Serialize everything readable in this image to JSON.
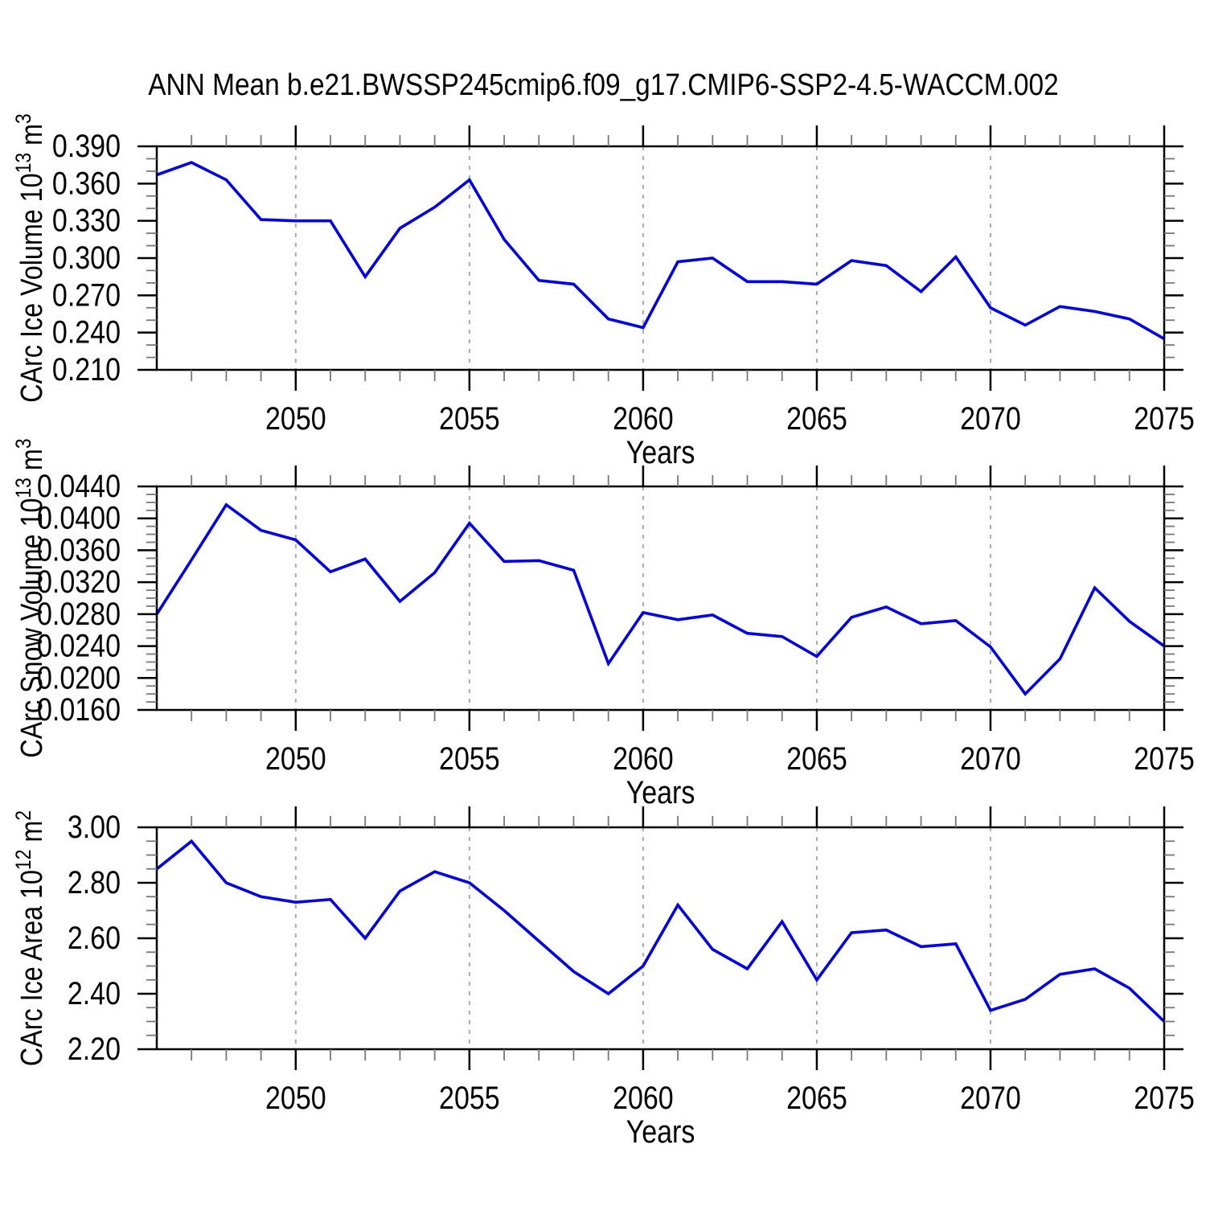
{
  "title": "ANN Mean b.e21.BWSSP245cmip6.f09_g17.CMIP6-SSP2-4.5-WACCM.002",
  "colors": {
    "line": "#0000F0",
    "grid": "#aaaaaa",
    "axis": "#000000",
    "minor_tick": "#777777"
  },
  "chart_data": [
    {
      "type": "line",
      "name": "ice-volume",
      "ylabel": "CArc Ice Volume 10^13 m^3",
      "ylabel_parts": {
        "pre": "CArc Ice Volume 10",
        "sup": "13",
        "mid": " m",
        "sup2": "3"
      },
      "xlabel": "Years",
      "x": [
        2046,
        2047,
        2048,
        2049,
        2050,
        2051,
        2052,
        2053,
        2054,
        2055,
        2056,
        2057,
        2058,
        2059,
        2060,
        2061,
        2062,
        2063,
        2064,
        2065,
        2066,
        2067,
        2068,
        2069,
        2070,
        2071,
        2072,
        2073,
        2074,
        2075
      ],
      "values": [
        0.367,
        0.377,
        0.363,
        0.331,
        0.33,
        0.33,
        0.285,
        0.324,
        0.341,
        0.363,
        0.315,
        0.282,
        0.279,
        0.251,
        0.244,
        0.297,
        0.3,
        0.281,
        0.281,
        0.279,
        0.298,
        0.294,
        0.273,
        0.301,
        0.26,
        0.246,
        0.261,
        0.257,
        0.251,
        0.235
      ],
      "ylim": [
        0.21,
        0.39
      ],
      "ymajor": 0.03,
      "yminor": 0.01,
      "ydecimals": 3,
      "xlim": [
        2046,
        2075
      ],
      "xmajors": [
        2050,
        2055,
        2060,
        2065,
        2070,
        2075
      ],
      "grid": "vertical-dashed",
      "legend": "none"
    },
    {
      "type": "line",
      "name": "snow-volume",
      "ylabel": "CArc Snow Volume 10^13 m^3",
      "ylabel_parts": {
        "pre": "CArc Snow Volume 10",
        "sup": "13",
        "mid": " m",
        "sup2": "3"
      },
      "xlabel": "Years",
      "x": [
        2046,
        2047,
        2048,
        2049,
        2050,
        2051,
        2052,
        2053,
        2054,
        2055,
        2056,
        2057,
        2058,
        2059,
        2060,
        2061,
        2062,
        2063,
        2064,
        2065,
        2066,
        2067,
        2068,
        2069,
        2070,
        2071,
        2072,
        2073,
        2074,
        2075
      ],
      "values": [
        0.028,
        0.0348,
        0.0417,
        0.0385,
        0.0373,
        0.0333,
        0.0349,
        0.0296,
        0.0332,
        0.0394,
        0.0346,
        0.0347,
        0.0335,
        0.0218,
        0.0282,
        0.0273,
        0.0279,
        0.0256,
        0.0252,
        0.0227,
        0.0276,
        0.0289,
        0.0268,
        0.0272,
        0.0239,
        0.018,
        0.0224,
        0.0313,
        0.0271,
        0.024
      ],
      "ylim": [
        0.016,
        0.044
      ],
      "ymajor": 0.004,
      "yminor": 0.001,
      "ydecimals": 4,
      "xlim": [
        2046,
        2075
      ],
      "xmajors": [
        2050,
        2055,
        2060,
        2065,
        2070,
        2075
      ],
      "grid": "vertical-dashed",
      "legend": "none"
    },
    {
      "type": "line",
      "name": "ice-area",
      "ylabel": "CArc Ice Area 10^12 m^2",
      "ylabel_parts": {
        "pre": "CArc Ice Area 10",
        "sup": "12",
        "mid": " m",
        "sup2": "2"
      },
      "xlabel": "Years",
      "x": [
        2046,
        2047,
        2048,
        2049,
        2050,
        2051,
        2052,
        2053,
        2054,
        2055,
        2056,
        2057,
        2058,
        2059,
        2060,
        2061,
        2062,
        2063,
        2064,
        2065,
        2066,
        2067,
        2068,
        2069,
        2070,
        2071,
        2072,
        2073,
        2074,
        2075
      ],
      "values": [
        2.85,
        2.95,
        2.8,
        2.75,
        2.73,
        2.74,
        2.6,
        2.77,
        2.84,
        2.8,
        2.7,
        2.59,
        2.48,
        2.4,
        2.5,
        2.72,
        2.56,
        2.49,
        2.66,
        2.45,
        2.62,
        2.63,
        2.57,
        2.58,
        2.34,
        2.38,
        2.47,
        2.49,
        2.42,
        2.3
      ],
      "ylim": [
        2.2,
        3.0
      ],
      "ymajor": 0.2,
      "yminor": 0.05,
      "ydecimals": 2,
      "xlim": [
        2046,
        2075
      ],
      "xmajors": [
        2050,
        2055,
        2060,
        2065,
        2070,
        2075
      ],
      "grid": "vertical-dashed",
      "legend": "none"
    }
  ]
}
